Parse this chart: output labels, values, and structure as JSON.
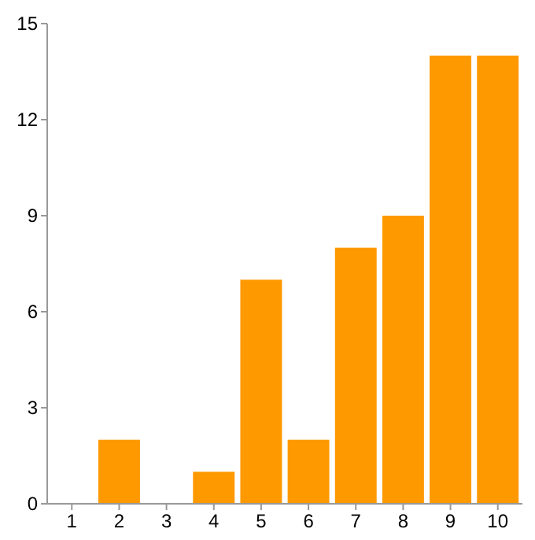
{
  "chart_data": {
    "type": "bar",
    "categories": [
      "1",
      "2",
      "3",
      "4",
      "5",
      "6",
      "7",
      "8",
      "9",
      "10"
    ],
    "values": [
      0,
      2,
      0,
      1,
      7,
      2,
      8,
      9,
      14,
      14
    ],
    "color": "#ff9900",
    "ylim": [
      0,
      15
    ],
    "yticks": [
      0,
      3,
      6,
      9,
      12,
      15
    ],
    "grid": false
  }
}
